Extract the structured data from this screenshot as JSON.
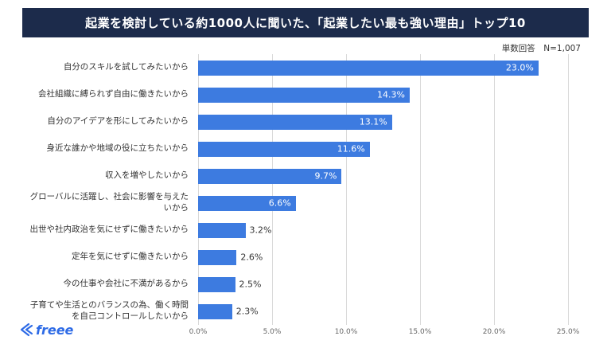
{
  "header": {
    "title": "起業を検討している約1000人に聞いた、「起業したい最も強い理由」トップ10",
    "bg_color": "#1C2B4B",
    "text_color": "#FFFFFF"
  },
  "meta": {
    "note": "単数回答　N=1,007"
  },
  "chart_data": {
    "type": "bar",
    "orientation": "horizontal",
    "title": "起業を検討している約1000人に聞いた、「起業したい最も強い理由」トップ10",
    "categories": [
      "自分のスキルを試してみたいから",
      "会社組織に縛られず自由に働きたいから",
      "自分のアイデアを形にしてみたいから",
      "身近な誰かや地域の役に立ちたいから",
      "収入を増やしたいから",
      "グローバルに活躍し、社会に影響を与えたいから",
      "出世や社内政治を気にせずに働きたいから",
      "定年を気にせずに働きたいから",
      "今の仕事や会社に不満があるから",
      "子育てや生活とのバランスの為、働く時間を自己コントロールしたいから"
    ],
    "values": [
      23.0,
      14.3,
      13.1,
      11.6,
      9.7,
      6.6,
      3.2,
      2.6,
      2.5,
      2.3
    ],
    "value_labels": [
      "23.0%",
      "14.3%",
      "13.1%",
      "11.6%",
      "9.7%",
      "6.6%",
      "3.2%",
      "2.6%",
      "2.5%",
      "2.3%"
    ],
    "xlim": [
      0,
      25
    ],
    "x_ticks": [
      "0.0%",
      "5.0%",
      "10.0%",
      "15.0%",
      "20.0%",
      "25.0%"
    ],
    "bar_color": "#3D7BE0",
    "inside_label_threshold": 6,
    "grid": true,
    "legend": false
  },
  "footer": {
    "logo_text": "freee",
    "logo_color": "#2E6BE6"
  }
}
